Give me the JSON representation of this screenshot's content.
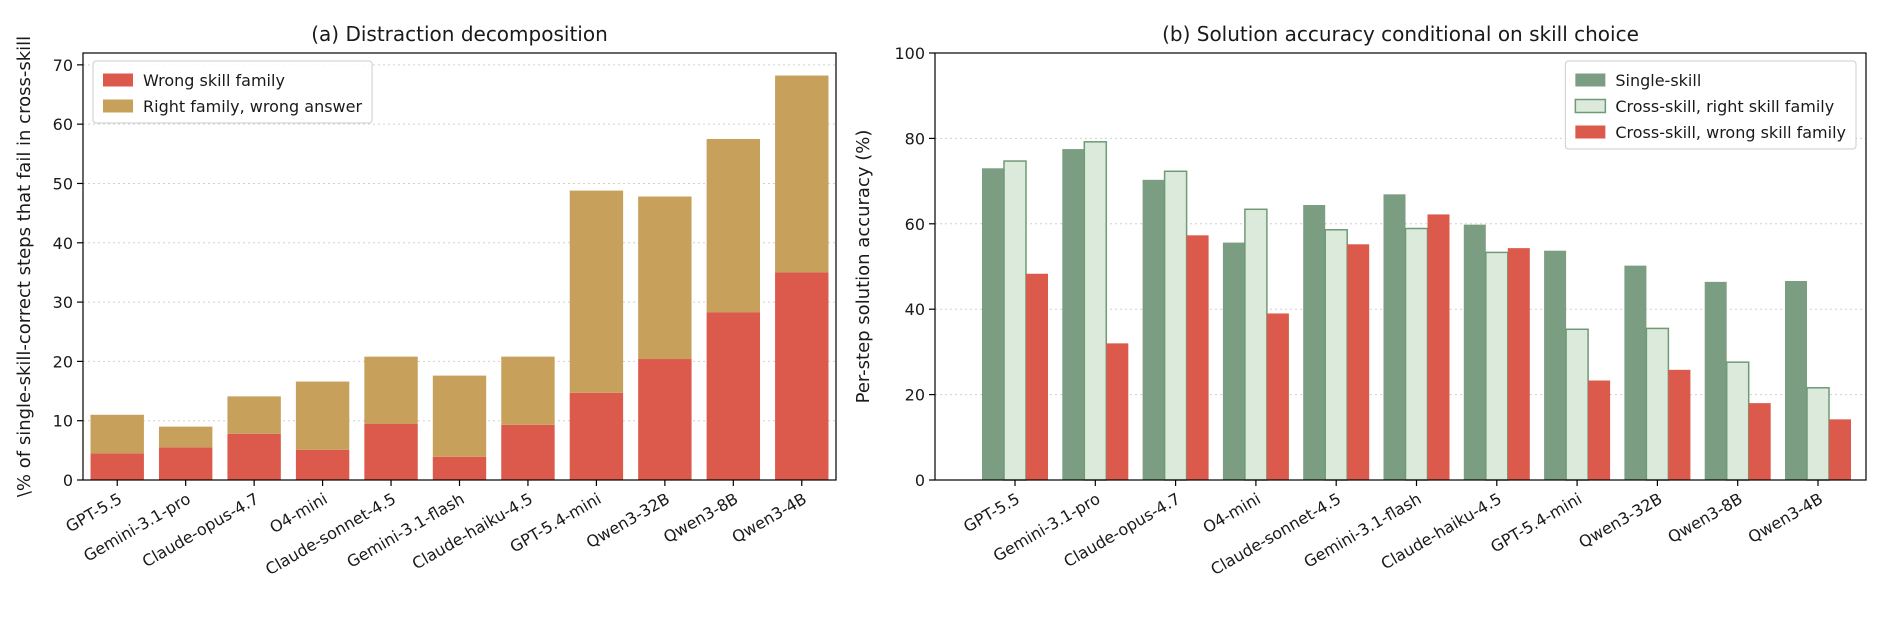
{
  "colors": {
    "red": "#DB5A4B",
    "gold": "#C7A05B",
    "green": "#7B9D82",
    "light_green": "#DCEADB",
    "light_green_edge": "#6F9A76"
  },
  "chart_data": [
    {
      "type": "bar",
      "stacked": true,
      "title": "(a) Distraction decomposition",
      "xlabel": "",
      "ylabel": "\\% of single-skill-correct steps that fail in cross-skill",
      "categories": [
        "GPT-5.5",
        "Gemini-3.1-pro",
        "Claude-opus-4.7",
        "O4-mini",
        "Claude-sonnet-4.5",
        "Gemini-3.1-flash",
        "Claude-haiku-4.5",
        "GPT-5.4-mini",
        "Qwen3-32B",
        "Qwen3-8B",
        "Qwen3-4B"
      ],
      "series": [
        {
          "name": "Wrong skill family",
          "color": "#DB5A4B",
          "values": [
            4.5,
            5.5,
            7.8,
            5.1,
            9.5,
            3.9,
            9.3,
            14.7,
            20.4,
            28.3,
            35.0
          ]
        },
        {
          "name": "Right family, wrong answer",
          "color": "#C7A05B",
          "values": [
            6.5,
            3.5,
            6.3,
            11.5,
            11.3,
            13.7,
            11.5,
            34.1,
            27.4,
            29.2,
            33.2
          ]
        }
      ],
      "ylim": [
        0,
        72
      ],
      "yticks": [
        0,
        10,
        20,
        30,
        40,
        50,
        60,
        70
      ],
      "grid": "horizontal-dotted",
      "legend_position": "upper-left"
    },
    {
      "type": "bar",
      "stacked": false,
      "title": "(b) Solution accuracy conditional on skill choice",
      "xlabel": "",
      "ylabel": "Per-step solution accuracy (%)",
      "categories": [
        "GPT-5.5",
        "Gemini-3.1-pro",
        "Claude-opus-4.7",
        "O4-mini",
        "Claude-sonnet-4.5",
        "Gemini-3.1-flash",
        "Claude-haiku-4.5",
        "GPT-5.4-mini",
        "Qwen3-32B",
        "Qwen3-8B",
        "Qwen3-4B"
      ],
      "series": [
        {
          "name": "Single-skill",
          "color": "#7B9D82",
          "values": [
            73.0,
            77.5,
            70.3,
            55.6,
            64.4,
            66.9,
            59.8,
            53.7,
            50.2,
            46.4,
            46.6
          ]
        },
        {
          "name": "Cross-skill, right skill family",
          "color": "#DCEADB",
          "edge": "#6F9A76",
          "values": [
            74.7,
            79.2,
            72.3,
            63.4,
            58.6,
            58.9,
            53.3,
            35.3,
            35.5,
            27.6,
            21.6
          ]
        },
        {
          "name": "Cross-skill, wrong skill family",
          "color": "#DB5A4B",
          "values": [
            48.3,
            32.0,
            57.3,
            39.0,
            55.2,
            62.2,
            54.3,
            23.3,
            25.8,
            18.0,
            14.2
          ]
        }
      ],
      "ylim": [
        0,
        100
      ],
      "yticks": [
        0,
        20,
        40,
        60,
        80,
        100
      ],
      "grid": "horizontal-dotted",
      "legend_position": "upper-right"
    }
  ]
}
